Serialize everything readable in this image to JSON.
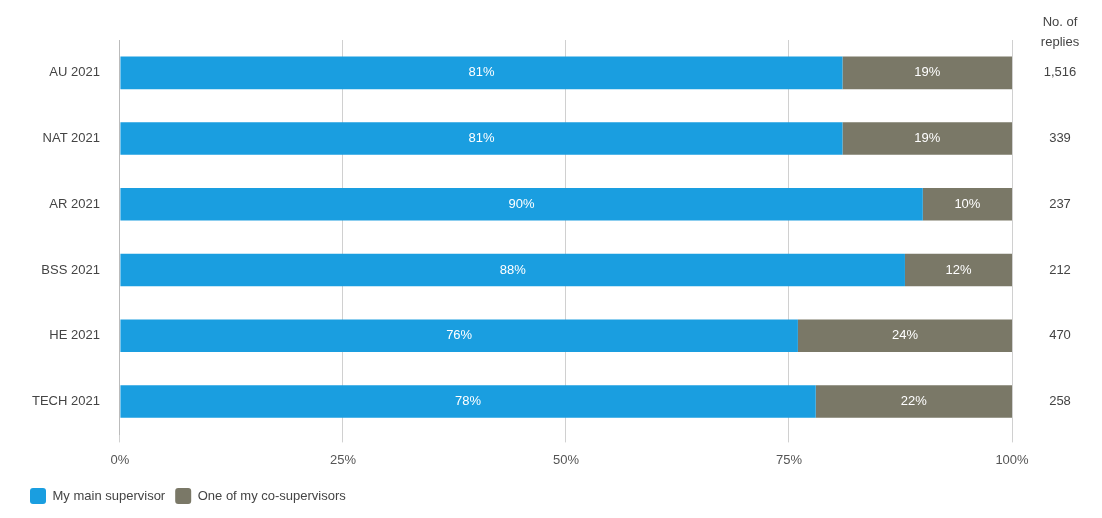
{
  "chart_data": {
    "type": "bar",
    "orientation": "horizontal",
    "stacked": true,
    "categories": [
      "AU 2021",
      "NAT 2021",
      "AR 2021",
      "BSS 2021",
      "HE 2021",
      "TECH 2021"
    ],
    "series": [
      {
        "name": "My main supervisor",
        "color": "#1a9ee0",
        "values": [
          81,
          81,
          90,
          88,
          76,
          78
        ],
        "value_labels": [
          "81%",
          "81%",
          "90%",
          "88%",
          "76%",
          "78%"
        ]
      },
      {
        "name": "One of my co-supervisors",
        "color": "#7a7867",
        "values": [
          19,
          19,
          10,
          12,
          24,
          22
        ],
        "value_labels": [
          "19%",
          "19%",
          "10%",
          "12%",
          "24%",
          "22%"
        ]
      }
    ],
    "xlim": [
      0,
      100
    ],
    "xticks": [
      {
        "value": 0,
        "label": "0%"
      },
      {
        "value": 25,
        "label": "25%"
      },
      {
        "value": 50,
        "label": "50%"
      },
      {
        "value": 75,
        "label": "75%"
      },
      {
        "value": 100,
        "label": "100%"
      }
    ],
    "grid": "x",
    "legend": "bottom left",
    "annotations": [
      "No. of replies",
      "1,516",
      "339",
      "237",
      "212",
      "470",
      "258"
    ]
  }
}
